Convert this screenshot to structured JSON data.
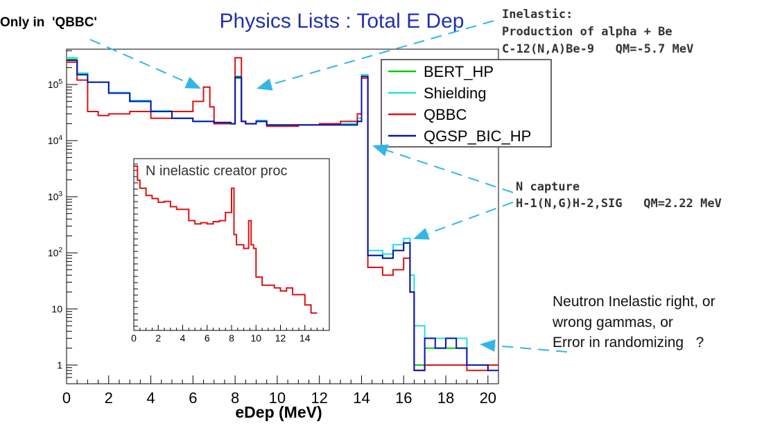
{
  "title": "Physics Lists : Total E Dep",
  "colors": {
    "BERT_HP": "#00cc00",
    "Shielding": "#22e0e0",
    "QBBC": "#dd1111",
    "QGSP_BIC_HP": "#0a14b4",
    "arrow": "#33b6e6",
    "title": "#2030b0"
  },
  "annotations": {
    "qbbc_only": "Only in  'QBBC'",
    "inelastic_1": "Inelastic:",
    "inelastic_2": "Production of alpha + Be",
    "inelastic_3": "C-12(N,A)Be-9   QM=-5.7 MeV",
    "ncapture_1": "N capture",
    "ncapture_2": "H-1(N,G)H-2,SIG   QM=2.22 MeV",
    "neutron_1": "Neutron Inelastic right, or",
    "neutron_2": "wrong gammas, or",
    "neutron_3": "Error in randomizing   ?"
  },
  "chart_data": [
    {
      "type": "line",
      "title": "Physics Lists : Total E Dep",
      "xlabel": "eDep (MeV)",
      "ylabel": "",
      "xlim": [
        0,
        20.5
      ],
      "ylim": [
        0.6,
        450000
      ],
      "yscale": "log",
      "x_ticks": [
        "0",
        "2",
        "4",
        "6",
        "8",
        "10",
        "12",
        "14",
        "16",
        "18",
        "20"
      ],
      "y_ticks": [
        "1",
        "10",
        "10^2",
        "10^3",
        "10^4",
        "10^5"
      ],
      "legend": "top-right",
      "series": [
        {
          "name": "BERT_HP",
          "x": [
            0,
            0.5,
            1,
            2,
            3,
            4,
            5,
            6,
            7,
            7.8,
            8,
            8.3,
            8.5,
            9,
            9.5,
            10,
            11,
            12,
            13,
            13.8,
            14,
            14.3,
            15,
            15.5,
            16,
            16.3,
            16.5,
            17,
            18,
            19,
            20,
            20.5
          ],
          "values": [
            280000,
            150000,
            110000,
            70000,
            50000,
            33000,
            25000,
            22000,
            21000,
            20000,
            130000,
            22000,
            20000,
            22000,
            19000,
            19000,
            19000,
            19000,
            19000,
            22000,
            140000,
            90,
            80,
            110,
            150,
            20,
            1,
            2,
            2,
            1,
            1,
            1
          ]
        },
        {
          "name": "Shielding",
          "x": [
            0,
            0.5,
            1,
            2,
            3,
            4,
            5,
            6,
            7,
            7.8,
            8,
            8.3,
            8.5,
            9,
            9.5,
            10,
            11,
            12,
            13,
            13.8,
            14,
            14.3,
            15,
            15.5,
            16,
            16.3,
            16.5,
            17,
            18,
            19,
            20,
            20.5
          ],
          "values": [
            300000,
            160000,
            110000,
            72000,
            52000,
            34000,
            25000,
            22000,
            21000,
            20000,
            140000,
            22000,
            20000,
            23000,
            19000,
            19000,
            19000,
            19000,
            20000,
            25000,
            150000,
            110,
            95,
            140,
            180,
            40,
            5,
            3,
            3,
            1,
            1,
            1
          ]
        },
        {
          "name": "QBBC",
          "x": [
            0,
            0.5,
            1,
            1.5,
            2,
            3,
            4,
            5,
            6,
            6.5,
            6.8,
            7,
            7.8,
            8,
            8.3,
            8.5,
            9,
            9.5,
            10,
            11,
            12,
            13,
            13.8,
            14,
            14.3,
            15,
            15.5,
            16,
            16.3,
            16.5,
            17,
            18,
            19,
            20,
            20.5
          ],
          "values": [
            250000,
            120000,
            33000,
            28000,
            30000,
            33000,
            25000,
            33000,
            50000,
            90000,
            40000,
            20000,
            20000,
            300000,
            22000,
            20000,
            22000,
            18000,
            18000,
            19000,
            20000,
            22000,
            30000,
            130000,
            55,
            40,
            50,
            80,
            20,
            0.8,
            1,
            1,
            0.8,
            1,
            1
          ]
        },
        {
          "name": "QGSP_BIC_HP",
          "x": [
            0,
            0.5,
            1,
            2,
            3,
            4,
            5,
            6,
            7,
            7.8,
            8,
            8.3,
            8.5,
            9,
            9.5,
            10,
            11,
            12,
            13,
            13.8,
            14,
            14.3,
            15,
            15.5,
            16,
            16.3,
            16.5,
            17,
            17.5,
            18,
            18.5,
            19,
            20,
            20.5
          ],
          "values": [
            270000,
            150000,
            110000,
            70000,
            50000,
            33000,
            25000,
            22000,
            21000,
            20000,
            135000,
            22000,
            20000,
            22000,
            19000,
            19000,
            19000,
            19000,
            19000,
            22000,
            140000,
            90,
            80,
            110,
            150,
            20,
            0.8,
            3,
            2,
            3,
            2,
            1,
            0.8,
            0.8
          ]
        }
      ]
    },
    {
      "type": "line",
      "title": "N inelastic creator proc",
      "xlim": [
        0,
        16
      ],
      "x_ticks": [
        "0",
        "2",
        "4",
        "6",
        "8",
        "10",
        "12",
        "14"
      ],
      "series": [
        {
          "name": "QBBC",
          "x": [
            0,
            0.3,
            0.5,
            1,
            1.5,
            2,
            2.5,
            3,
            3.5,
            4,
            4.5,
            5,
            5.5,
            6,
            6.5,
            7,
            7.5,
            8,
            8.2,
            8.4,
            8.6,
            9,
            9.4,
            9.6,
            9.8,
            10,
            10.5,
            11,
            11.5,
            12,
            12.5,
            13,
            13.5,
            14,
            14.5,
            15
          ],
          "values": [
            3000,
            1500,
            1000,
            700,
            600,
            500,
            520,
            400,
            350,
            350,
            200,
            170,
            180,
            170,
            190,
            200,
            300,
            1000,
            100,
            60,
            60,
            50,
            200,
            60,
            50,
            12,
            8,
            8,
            7,
            6,
            7,
            5,
            5,
            3,
            2,
            1
          ]
        }
      ]
    }
  ]
}
